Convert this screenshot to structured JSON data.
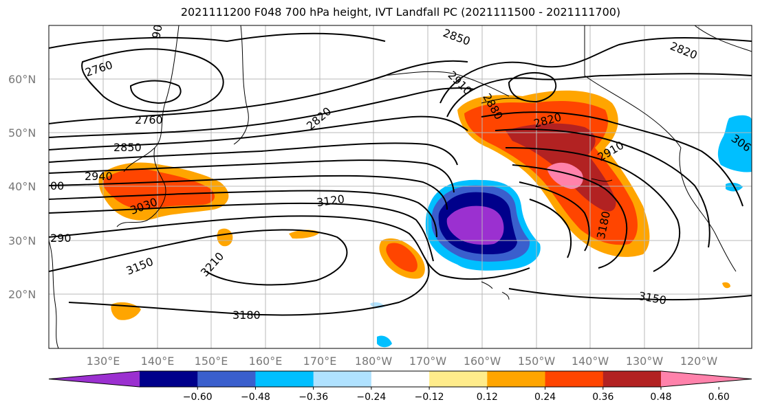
{
  "title": "2021111200 F048 700 hPa height, IVT Landfall PC (2021111500 - 2021111700)",
  "lat_ticks": [
    "60°N",
    "50°N",
    "40°N",
    "30°N",
    "20°N"
  ],
  "lon_ticks": [
    "130°E",
    "140°E",
    "150°E",
    "160°E",
    "170°E",
    "180°W",
    "170°W",
    "160°W",
    "150°W",
    "140°W",
    "130°W",
    "120°W"
  ],
  "colorbar": {
    "tick_labels": [
      "-0.60",
      "-0.48",
      "-0.36",
      "-0.24",
      "-0.12",
      "0.12",
      "0.24",
      "0.36",
      "0.48",
      "0.60"
    ],
    "colors": [
      "#9b30d0",
      "#00008b",
      "#3a5fcd",
      "#00bfff",
      "#b0e2ff",
      "#ffffff",
      "#ffec8b",
      "#ffa500",
      "#ff4500",
      "#b22222",
      "#ff82ab"
    ]
  },
  "contour_labels": [
    {
      "text": "2760"
    },
    {
      "text": "2760"
    },
    {
      "text": "2850"
    },
    {
      "text": "2940"
    },
    {
      "text": "3030"
    },
    {
      "text": "3120"
    },
    {
      "text": "3150"
    },
    {
      "text": "3210"
    },
    {
      "text": "3180"
    },
    {
      "text": "2850"
    },
    {
      "text": "2910"
    },
    {
      "text": "2880"
    },
    {
      "text": "2820"
    },
    {
      "text": "2820"
    },
    {
      "text": "2910"
    },
    {
      "text": "3180"
    },
    {
      "text": "3150"
    },
    {
      "text": "2820"
    },
    {
      "text": "306"
    },
    {
      "text": "90"
    },
    {
      "text": "290"
    },
    {
      "text": "00"
    }
  ]
}
